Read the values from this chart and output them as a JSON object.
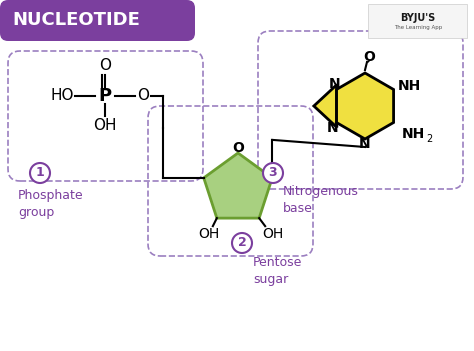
{
  "title": "NUCLEOTIDE",
  "title_bg": "#7B3F9E",
  "title_text_color": "#FFFFFF",
  "bg_color": "#FFFFFF",
  "label1": "Phosphate\ngroup",
  "label2": "Pentose\nsugar",
  "label3": "Nitrogenous\nbase",
  "label_color": "#7B3F9E",
  "dashed_color": "#9B7FC0",
  "line_color": "#000000",
  "sugar_fill": "#A8D080",
  "sugar_dark": "#6B9E30",
  "base_fill": "#F0E040",
  "base_dark": "#C8B820"
}
